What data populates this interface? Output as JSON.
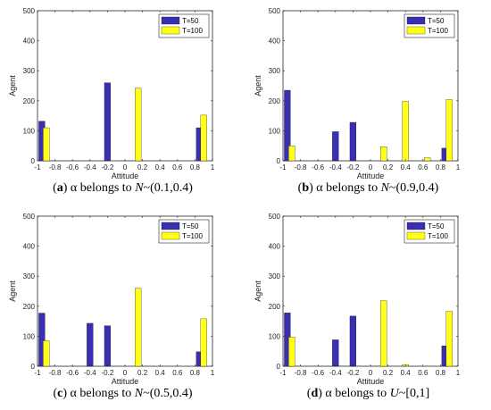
{
  "chart_data": [
    {
      "type": "bar",
      "panel_letter": "a",
      "caption_pre": " α belongs to ",
      "caption_dist": "N",
      "caption_post": "~(0.1,0.4)",
      "xlabel": "Attitude",
      "ylabel": "Agent",
      "xlim": [
        -1,
        1
      ],
      "ylim": [
        0,
        500
      ],
      "xticks": [
        "-1",
        "-0.8",
        "-0.6",
        "-0.4",
        "-0.2",
        "0",
        "0.2",
        "0.4",
        "0.6",
        "0.8",
        "1"
      ],
      "yticks": [
        "0",
        "100",
        "200",
        "300",
        "400",
        "500"
      ],
      "legend_position": "top-right",
      "series": [
        {
          "name": "T=50",
          "color": "#3a2eb3",
          "points": [
            [
              -0.95,
              132
            ],
            [
              -0.2,
              260
            ],
            [
              0.85,
              110
            ]
          ]
        },
        {
          "name": "T=100",
          "color": "#ffff1a",
          "points": [
            [
              -0.9,
              110
            ],
            [
              0.15,
              242
            ],
            [
              0.9,
              152
            ]
          ]
        }
      ]
    },
    {
      "type": "bar",
      "panel_letter": "b",
      "caption_pre": " α belongs to ",
      "caption_dist": "N",
      "caption_post": "~(0.9,0.4)",
      "xlabel": "Attitude",
      "ylabel": "Agent",
      "xlim": [
        -1,
        1
      ],
      "ylim": [
        0,
        500
      ],
      "xticks": [
        "-1",
        "-0.8",
        "-0.6",
        "-0.4",
        "-0.2",
        "0",
        "0.2",
        "0.4",
        "0.6",
        "0.8",
        "1"
      ],
      "yticks": [
        "0",
        "100",
        "200",
        "300",
        "400",
        "500"
      ],
      "legend_position": "top-right",
      "series": [
        {
          "name": "T=50",
          "color": "#3a2eb3",
          "points": [
            [
              -0.95,
              235
            ],
            [
              -0.4,
              97
            ],
            [
              -0.2,
              128
            ],
            [
              0.85,
              42
            ]
          ]
        },
        {
          "name": "T=100",
          "color": "#ffff1a",
          "points": [
            [
              -0.9,
              50
            ],
            [
              0.15,
              47
            ],
            [
              0.4,
              198
            ],
            [
              0.65,
              10
            ],
            [
              0.9,
              204
            ]
          ]
        }
      ]
    },
    {
      "type": "bar",
      "panel_letter": "c",
      "caption_pre": " α belongs to ",
      "caption_dist": "N",
      "caption_post": "~(0.5,0.4)",
      "xlabel": "Attitude",
      "ylabel": "Agent",
      "xlim": [
        -1,
        1
      ],
      "ylim": [
        0,
        500
      ],
      "xticks": [
        "-1",
        "-0.8",
        "-0.6",
        "-0.4",
        "-0.2",
        "0",
        "0.2",
        "0.4",
        "0.6",
        "0.8",
        "1"
      ],
      "yticks": [
        "0",
        "100",
        "200",
        "300",
        "400",
        "500"
      ],
      "legend_position": "top-right",
      "series": [
        {
          "name": "T=50",
          "color": "#3a2eb3",
          "points": [
            [
              -0.95,
              177
            ],
            [
              -0.4,
              143
            ],
            [
              -0.2,
              135
            ],
            [
              0.85,
              48
            ]
          ]
        },
        {
          "name": "T=100",
          "color": "#ffff1a",
          "points": [
            [
              -0.9,
              85
            ],
            [
              0.15,
              260
            ],
            [
              0.9,
              158
            ]
          ]
        }
      ]
    },
    {
      "type": "bar",
      "panel_letter": "d",
      "caption_pre": " α belongs to ",
      "caption_dist": "U",
      "caption_post": "~[0,1]",
      "xlabel": "Attitude",
      "ylabel": "Agent",
      "xlim": [
        -1,
        1
      ],
      "ylim": [
        0,
        500
      ],
      "xticks": [
        "-1",
        "-0.8",
        "-0.6",
        "-0.4",
        "-0.2",
        "0",
        "0.2",
        "0.4",
        "0.6",
        "0.8",
        "1"
      ],
      "yticks": [
        "0",
        "100",
        "200",
        "300",
        "400",
        "500"
      ],
      "legend_position": "top-right",
      "series": [
        {
          "name": "T=50",
          "color": "#3a2eb3",
          "points": [
            [
              -0.95,
              178
            ],
            [
              -0.4,
              88
            ],
            [
              -0.2,
              167
            ],
            [
              0.85,
              68
            ]
          ]
        },
        {
          "name": "T=100",
          "color": "#ffff1a",
          "points": [
            [
              -0.9,
              97
            ],
            [
              0.15,
              218
            ],
            [
              0.4,
              5
            ],
            [
              0.9,
              183
            ]
          ]
        }
      ]
    }
  ]
}
